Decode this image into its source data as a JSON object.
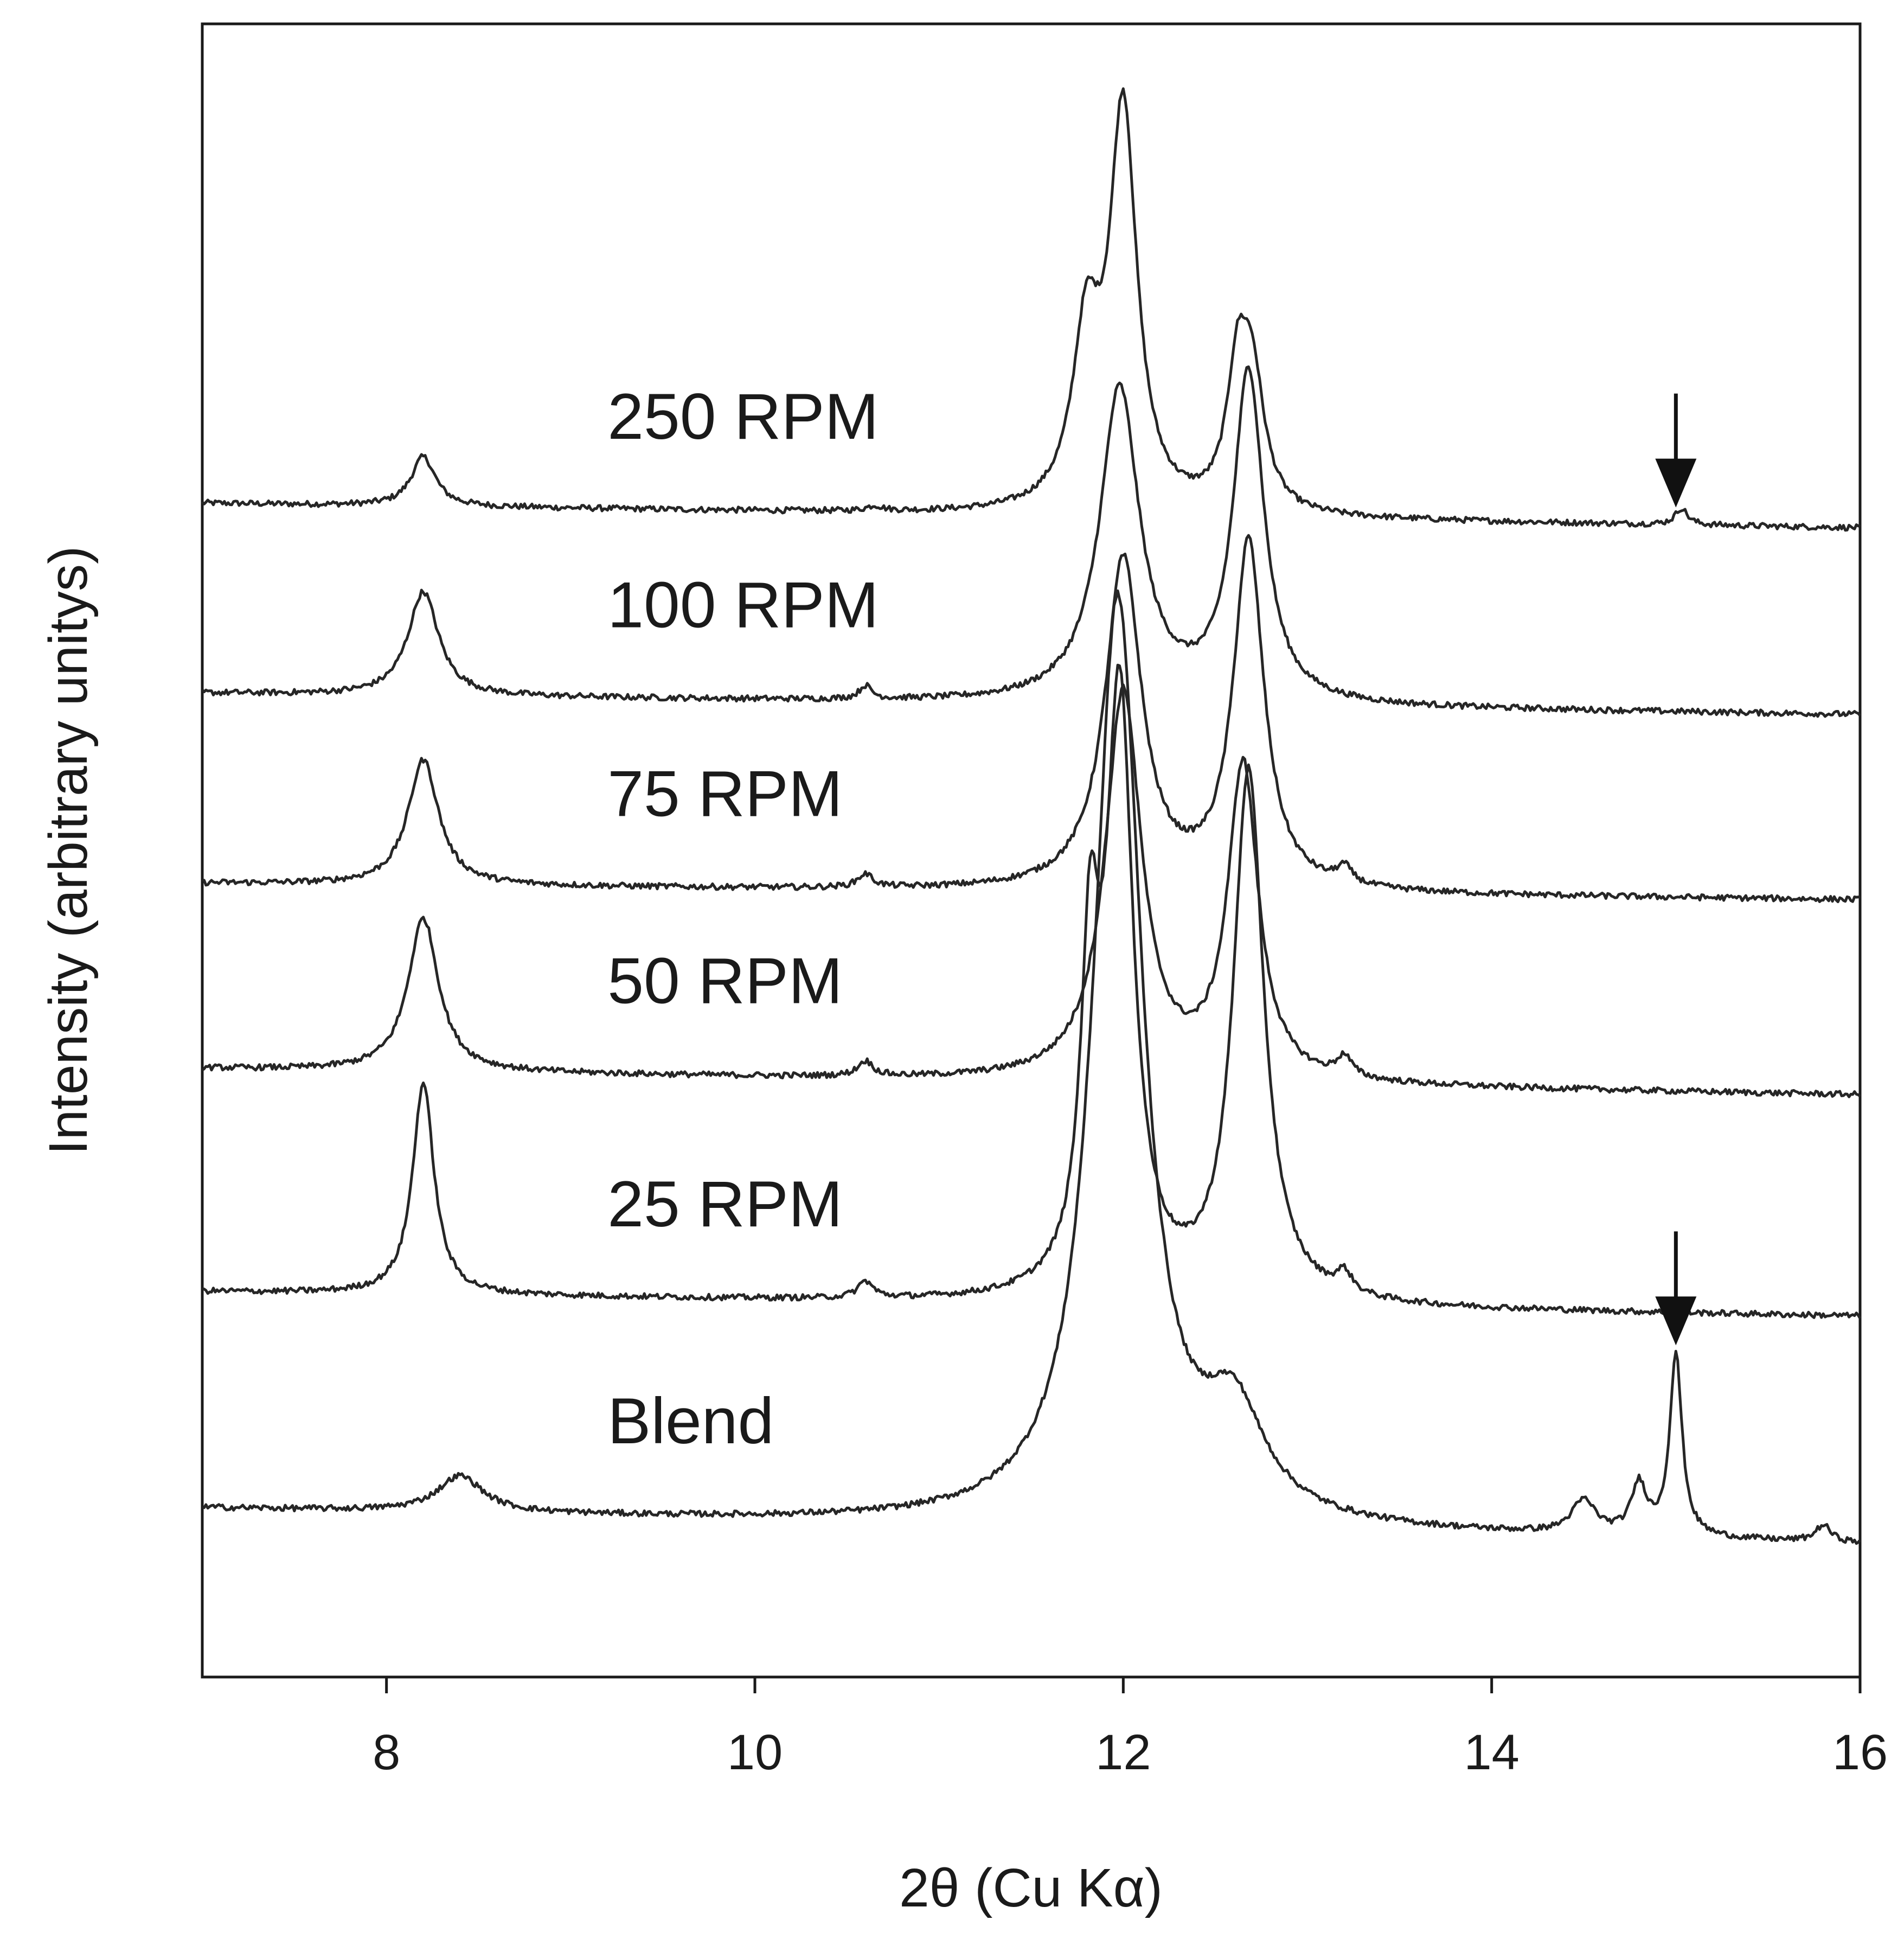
{
  "chart_data": {
    "type": "line",
    "title": "",
    "xlabel": "2θ (Cu Kα)",
    "ylabel": "Intensity (arbitrary unitys)",
    "xlim": [
      7,
      16
    ],
    "ylim": [
      0,
      100
    ],
    "xticks": [
      8,
      10,
      12,
      14,
      16
    ],
    "x_tick_labels": [
      "8",
      "10",
      "12",
      "14",
      "16"
    ],
    "grid": false,
    "line_color": "#262626",
    "series": [
      {
        "name": "250 RPM",
        "label": "250 RPM",
        "label_x": 9.2,
        "baseline_start": 71.0,
        "baseline_end": 69.5,
        "peaks": [
          {
            "x": 8.2,
            "height": 3.0,
            "width": 0.08
          },
          {
            "x": 10.65,
            "height": 0.3,
            "width": 0.05
          },
          {
            "x": 11.8,
            "height": 10.0,
            "width": 0.09
          },
          {
            "x": 12.0,
            "height": 24.0,
            "width": 0.09
          },
          {
            "x": 12.62,
            "height": 7.5,
            "width": 0.07
          },
          {
            "x": 12.7,
            "height": 7.5,
            "width": 0.08
          },
          {
            "x": 15.03,
            "height": 1.0,
            "width": 0.04
          }
        ],
        "arrow_at": 15.0
      },
      {
        "name": "100 RPM",
        "label": "100 RPM",
        "label_x": 9.2,
        "baseline_start": 59.5,
        "baseline_end": 58.2,
        "peaks": [
          {
            "x": 8.2,
            "height": 6.3,
            "width": 0.1
          },
          {
            "x": 10.6,
            "height": 0.8,
            "width": 0.04
          },
          {
            "x": 11.98,
            "height": 19.0,
            "width": 0.13
          },
          {
            "x": 12.68,
            "height": 20.0,
            "width": 0.1
          }
        ]
      },
      {
        "name": "75 RPM",
        "label": "75 RPM",
        "label_x": 9.2,
        "baseline_start": 48.0,
        "baseline_end": 47.0,
        "peaks": [
          {
            "x": 8.2,
            "height": 7.6,
            "width": 0.1
          },
          {
            "x": 10.6,
            "height": 0.8,
            "width": 0.05
          },
          {
            "x": 12.0,
            "height": 20.0,
            "width": 0.12
          },
          {
            "x": 12.68,
            "height": 21.0,
            "width": 0.1
          },
          {
            "x": 13.2,
            "height": 1.0,
            "width": 0.05
          }
        ]
      },
      {
        "name": "50 RPM",
        "label": "50 RPM",
        "label_x": 9.2,
        "baseline_start": 36.8,
        "baseline_end": 35.2,
        "peaks": [
          {
            "x": 8.2,
            "height": 9.3,
            "width": 0.1
          },
          {
            "x": 10.6,
            "height": 0.9,
            "width": 0.05
          },
          {
            "x": 12.0,
            "height": 23.5,
            "width": 0.12
          },
          {
            "x": 12.65,
            "height": 19.0,
            "width": 0.1
          },
          {
            "x": 13.2,
            "height": 1.2,
            "width": 0.05
          }
        ]
      },
      {
        "name": "25 RPM",
        "label": "25 RPM",
        "label_x": 9.2,
        "baseline_start": 23.3,
        "baseline_end": 21.8,
        "peaks": [
          {
            "x": 8.2,
            "height": 12.8,
            "width": 0.07
          },
          {
            "x": 10.6,
            "height": 1.0,
            "width": 0.05
          },
          {
            "x": 11.82,
            "height": 18.0,
            "width": 0.06
          },
          {
            "x": 11.98,
            "height": 36.0,
            "width": 0.09
          },
          {
            "x": 12.68,
            "height": 32.0,
            "width": 0.1
          },
          {
            "x": 13.2,
            "height": 1.2,
            "width": 0.05
          }
        ]
      },
      {
        "name": "Blend",
        "label": "Blend",
        "label_x": 9.2,
        "baseline_start": 10.2,
        "baseline_end": 8.0,
        "peaks": [
          {
            "x": 8.4,
            "height": 2.2,
            "width": 0.15
          },
          {
            "x": 11.97,
            "height": 56.0,
            "width": 0.16
          },
          {
            "x": 12.6,
            "height": 6.0,
            "width": 0.2
          },
          {
            "x": 14.5,
            "height": 2.0,
            "width": 0.08
          },
          {
            "x": 14.8,
            "height": 3.0,
            "width": 0.05
          },
          {
            "x": 15.0,
            "height": 11.0,
            "width": 0.04
          },
          {
            "x": 15.8,
            "height": 1.0,
            "width": 0.05
          }
        ],
        "arrow_at": 15.0
      }
    ]
  }
}
